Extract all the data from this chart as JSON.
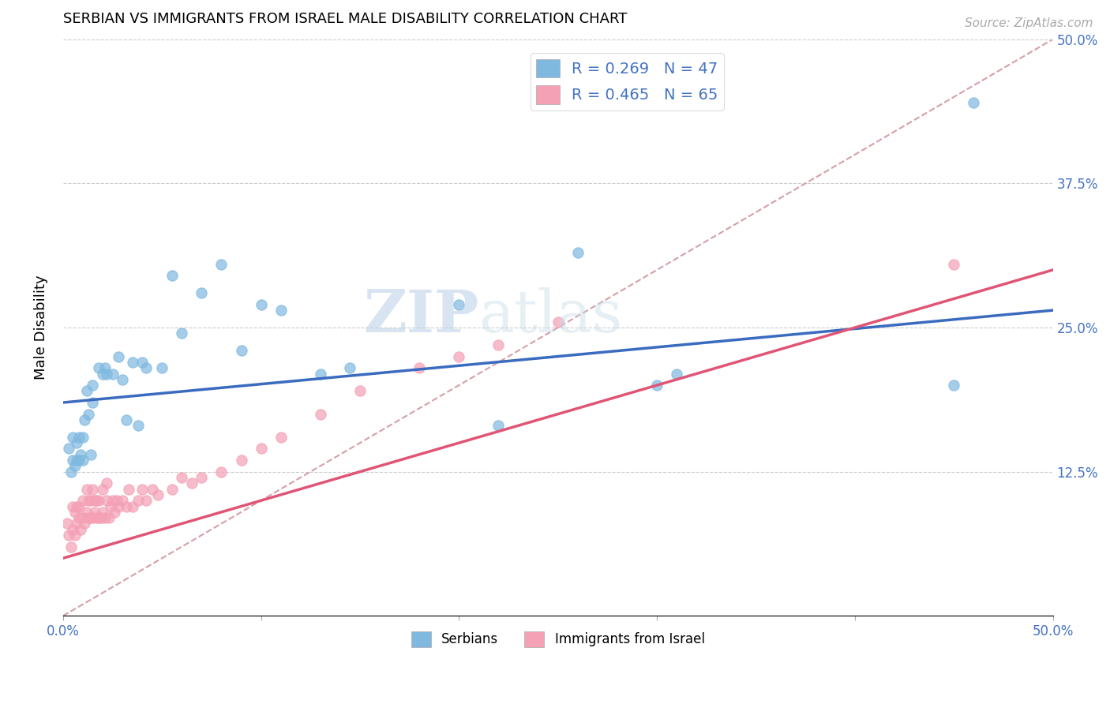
{
  "title": "SERBIAN VS IMMIGRANTS FROM ISRAEL MALE DISABILITY CORRELATION CHART",
  "source": "Source: ZipAtlas.com",
  "ylabel": "Male Disability",
  "watermark": "ZIPatlas",
  "xlim": [
    0.0,
    0.5
  ],
  "ylim": [
    0.0,
    0.5
  ],
  "color_serbian": "#7fb9e0",
  "color_israel": "#f4a0b5",
  "color_serbian_line": "#3a6bbf",
  "color_israel_line": "#e05575",
  "color_diagonal_line": "#d4a0a8",
  "serbian_x": [
    0.003,
    0.004,
    0.005,
    0.005,
    0.006,
    0.007,
    0.007,
    0.008,
    0.008,
    0.009,
    0.01,
    0.01,
    0.011,
    0.012,
    0.013,
    0.014,
    0.015,
    0.015,
    0.018,
    0.02,
    0.021,
    0.022,
    0.025,
    0.028,
    0.03,
    0.032,
    0.035,
    0.038,
    0.04,
    0.042,
    0.05,
    0.055,
    0.06,
    0.07,
    0.08,
    0.09,
    0.1,
    0.11,
    0.13,
    0.145,
    0.2,
    0.22,
    0.26,
    0.3,
    0.31,
    0.45,
    0.46
  ],
  "serbian_y": [
    0.145,
    0.125,
    0.155,
    0.135,
    0.13,
    0.135,
    0.15,
    0.135,
    0.155,
    0.14,
    0.135,
    0.155,
    0.17,
    0.195,
    0.175,
    0.14,
    0.185,
    0.2,
    0.215,
    0.21,
    0.215,
    0.21,
    0.21,
    0.225,
    0.205,
    0.17,
    0.22,
    0.165,
    0.22,
    0.215,
    0.215,
    0.295,
    0.245,
    0.28,
    0.305,
    0.23,
    0.27,
    0.265,
    0.21,
    0.215,
    0.27,
    0.165,
    0.315,
    0.2,
    0.21,
    0.2,
    0.445
  ],
  "israel_x": [
    0.002,
    0.003,
    0.004,
    0.005,
    0.005,
    0.006,
    0.006,
    0.007,
    0.007,
    0.008,
    0.008,
    0.009,
    0.01,
    0.01,
    0.011,
    0.012,
    0.012,
    0.013,
    0.013,
    0.014,
    0.014,
    0.015,
    0.015,
    0.016,
    0.016,
    0.017,
    0.017,
    0.018,
    0.018,
    0.019,
    0.02,
    0.02,
    0.021,
    0.022,
    0.022,
    0.023,
    0.024,
    0.025,
    0.026,
    0.027,
    0.028,
    0.03,
    0.032,
    0.033,
    0.035,
    0.038,
    0.04,
    0.042,
    0.045,
    0.048,
    0.055,
    0.06,
    0.065,
    0.07,
    0.08,
    0.09,
    0.1,
    0.11,
    0.13,
    0.15,
    0.18,
    0.2,
    0.22,
    0.25,
    0.45
  ],
  "israel_y": [
    0.08,
    0.07,
    0.06,
    0.075,
    0.095,
    0.07,
    0.09,
    0.08,
    0.095,
    0.085,
    0.095,
    0.075,
    0.085,
    0.1,
    0.08,
    0.09,
    0.11,
    0.085,
    0.1,
    0.085,
    0.1,
    0.085,
    0.11,
    0.09,
    0.1,
    0.085,
    0.1,
    0.085,
    0.1,
    0.085,
    0.09,
    0.11,
    0.085,
    0.1,
    0.115,
    0.085,
    0.095,
    0.1,
    0.09,
    0.1,
    0.095,
    0.1,
    0.095,
    0.11,
    0.095,
    0.1,
    0.11,
    0.1,
    0.11,
    0.105,
    0.11,
    0.12,
    0.115,
    0.12,
    0.125,
    0.135,
    0.145,
    0.155,
    0.175,
    0.195,
    0.215,
    0.225,
    0.235,
    0.255,
    0.305
  ]
}
